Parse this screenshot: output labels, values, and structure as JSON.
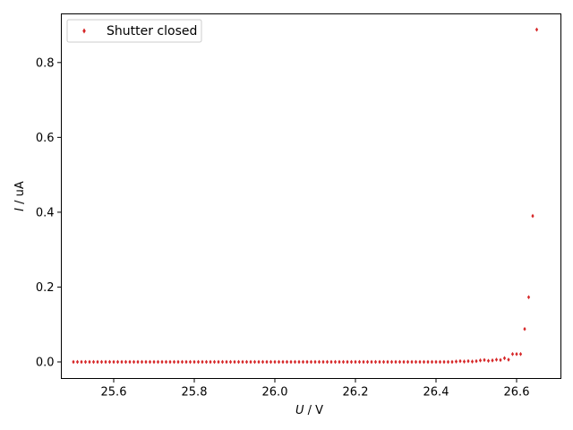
{
  "chart_data": {
    "type": "scatter",
    "title": "",
    "xlabel_var": "U",
    "xlabel_unit": " / V",
    "ylabel_var": "I",
    "ylabel_unit": " / uA",
    "xlim": [
      25.47,
      26.71
    ],
    "ylim": [
      -0.0443,
      0.93
    ],
    "xticks": [
      25.6,
      25.8,
      26.0,
      26.2,
      26.4,
      26.6
    ],
    "xtick_labels": [
      "25.6",
      "25.8",
      "26.0",
      "26.2",
      "26.4",
      "26.6"
    ],
    "yticks": [
      0.0,
      0.2,
      0.4,
      0.6,
      0.8
    ],
    "ytick_labels": [
      "0.0",
      "0.2",
      "0.4",
      "0.6",
      "0.8"
    ],
    "legend_position": "top-left",
    "series": [
      {
        "name": "Shutter closed",
        "color": "#d62728",
        "marker": "diamond",
        "x": [
          25.5,
          25.51,
          25.52,
          25.53,
          25.54,
          25.55,
          25.56,
          25.57,
          25.58,
          25.59,
          25.6,
          25.61,
          25.62,
          25.63,
          25.64,
          25.65,
          25.66,
          25.67,
          25.68,
          25.69,
          25.7,
          25.71,
          25.72,
          25.73,
          25.74,
          25.75,
          25.76,
          25.77,
          25.78,
          25.79,
          25.8,
          25.81,
          25.82,
          25.83,
          25.84,
          25.85,
          25.86,
          25.87,
          25.88,
          25.89,
          25.9,
          25.91,
          25.92,
          25.93,
          25.94,
          25.95,
          25.96,
          25.97,
          25.98,
          25.99,
          26.0,
          26.01,
          26.02,
          26.03,
          26.04,
          26.05,
          26.06,
          26.07,
          26.08,
          26.09,
          26.1,
          26.11,
          26.12,
          26.13,
          26.14,
          26.15,
          26.16,
          26.17,
          26.18,
          26.19,
          26.2,
          26.21,
          26.22,
          26.23,
          26.24,
          26.25,
          26.26,
          26.27,
          26.28,
          26.29,
          26.3,
          26.31,
          26.32,
          26.33,
          26.34,
          26.35,
          26.36,
          26.37,
          26.38,
          26.39,
          26.4,
          26.41,
          26.42,
          26.43,
          26.44,
          26.45,
          26.46,
          26.47,
          26.48,
          26.49,
          26.5,
          26.51,
          26.52,
          26.53,
          26.54,
          26.55,
          26.56,
          26.57,
          26.58,
          26.59,
          26.6,
          26.61,
          26.62,
          26.63,
          26.64,
          26.65
        ],
        "y": [
          0,
          0,
          0,
          0,
          0,
          0,
          0,
          0,
          0,
          0,
          0,
          0,
          0,
          0,
          0,
          0,
          0,
          0,
          0,
          0,
          0,
          0,
          0,
          0,
          0,
          0,
          0,
          0,
          0,
          0,
          0,
          0,
          0,
          0,
          0,
          0,
          0,
          0,
          0,
          0,
          0,
          0,
          0,
          0,
          0,
          0,
          0,
          0,
          0,
          0,
          0,
          0,
          0,
          0,
          0,
          0,
          0,
          0,
          0,
          0,
          0,
          0,
          0,
          0,
          0,
          0,
          0,
          0,
          0,
          0,
          0,
          0,
          0,
          0,
          0,
          0,
          0,
          0,
          0,
          0,
          0,
          0,
          0,
          0,
          0,
          0,
          0,
          0,
          0,
          0,
          0,
          0,
          0,
          0,
          0,
          0.001,
          0.002,
          0.001,
          0.002,
          0.001,
          0.002,
          0.004,
          0.005,
          0.003,
          0.004,
          0.006,
          0.005,
          0.01,
          0.006,
          0.021,
          0.021,
          0.021,
          0.088,
          0.173,
          0.39,
          0.888
        ]
      }
    ]
  }
}
